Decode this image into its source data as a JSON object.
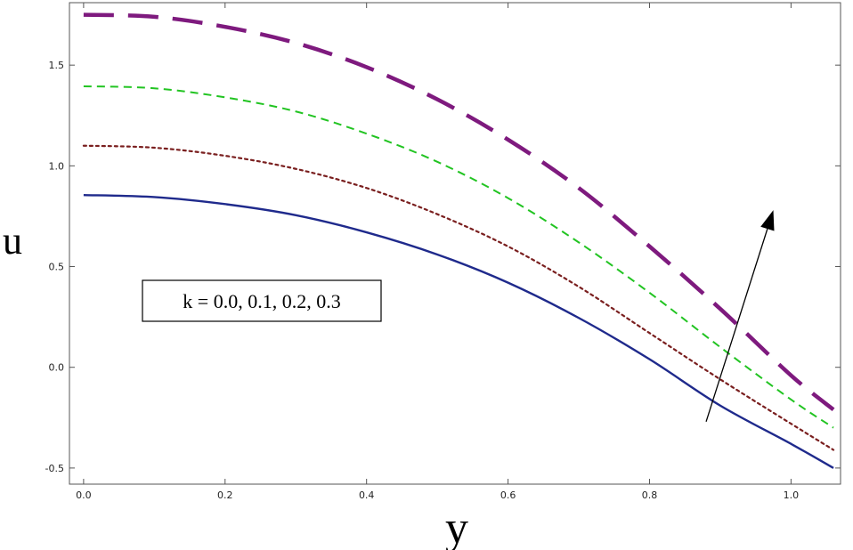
{
  "chart_data": {
    "type": "line",
    "title": "",
    "xlabel": "y",
    "ylabel": "u",
    "xlim": [
      -0.02,
      1.07
    ],
    "ylim": [
      -0.58,
      1.81
    ],
    "x_ticks": [
      "0.0",
      "0.2",
      "0.4",
      "0.6",
      "0.8",
      "1.0"
    ],
    "y_ticks": [
      "-0.5",
      "0.0",
      "0.5",
      "1.0",
      "1.5"
    ],
    "x_tick_values": [
      0.0,
      0.2,
      0.4,
      0.6,
      0.8,
      1.0
    ],
    "y_tick_values": [
      -0.5,
      0.0,
      0.5,
      1.0,
      1.5
    ],
    "grid": false,
    "annotation": {
      "text": "k = 0.0, 0.1, 0.2, 0.3",
      "arrow_from": [
        0.88,
        -0.27
      ],
      "arrow_to": [
        0.975,
        0.78
      ]
    },
    "x": [
      0.0,
      0.1,
      0.2,
      0.3,
      0.4,
      0.5,
      0.6,
      0.7,
      0.8,
      0.9,
      1.0,
      1.06
    ],
    "series": [
      {
        "color": "#1f2a8c",
        "dash": "solid",
        "values": [
          0.855,
          0.845,
          0.81,
          0.755,
          0.67,
          0.56,
          0.42,
          0.245,
          0.04,
          -0.19,
          -0.38,
          -0.5
        ]
      },
      {
        "color": "#7a1f1f",
        "dash": "dotted",
        "values": [
          1.1,
          1.09,
          1.05,
          0.985,
          0.89,
          0.76,
          0.6,
          0.4,
          0.17,
          -0.06,
          -0.28,
          -0.41
        ]
      },
      {
        "color": "#22c422",
        "dash": "dashed",
        "values": [
          1.395,
          1.385,
          1.34,
          1.27,
          1.16,
          1.02,
          0.84,
          0.62,
          0.37,
          0.1,
          -0.16,
          -0.3
        ]
      },
      {
        "color": "#7e1a7e",
        "dash": "longdash",
        "values": [
          1.75,
          1.74,
          1.69,
          1.61,
          1.49,
          1.33,
          1.13,
          0.89,
          0.6,
          0.29,
          -0.04,
          -0.21
        ]
      }
    ]
  }
}
